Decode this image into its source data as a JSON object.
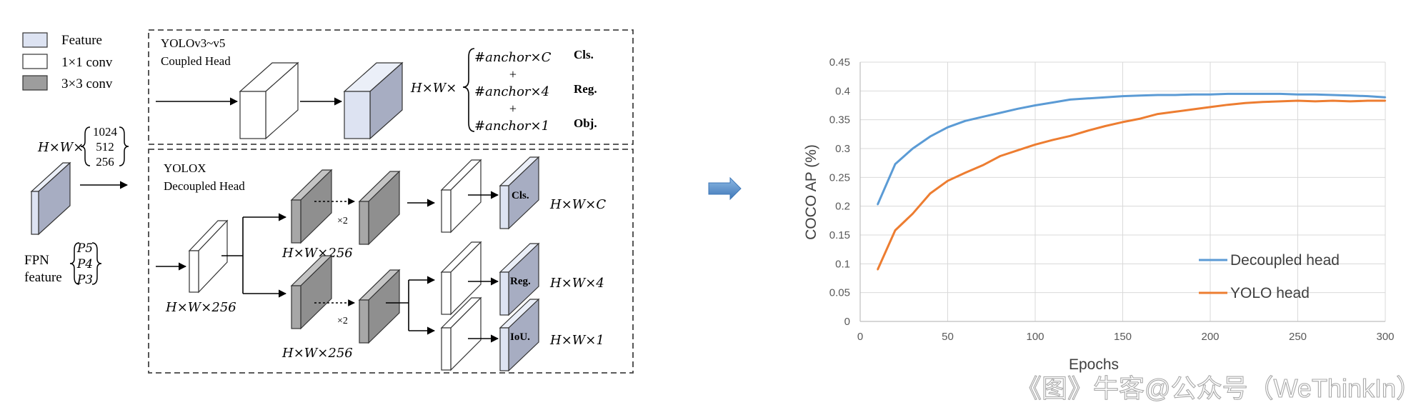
{
  "legend": {
    "feature": "Feature",
    "conv1": "1×1 conv",
    "conv3": "3×3 conv"
  },
  "input": {
    "dims_prefix": "H×W×",
    "channels": [
      "1024",
      "512",
      "256"
    ],
    "fpn_label_line1": "FPN",
    "fpn_label_line2": "feature",
    "levels": [
      "P5",
      "P4",
      "P3"
    ]
  },
  "coupled": {
    "title_line1": "YOLOv3~v5",
    "title_line2": "Coupled Head",
    "dims_prefix": "H×W×",
    "out1": "#anchor×C",
    "out2": "#anchor×4",
    "out3": "#anchor×1",
    "plus": "+",
    "tag1": "Cls.",
    "tag2": "Reg.",
    "tag3": "Obj."
  },
  "decoupled": {
    "title_line1": "YOLOX",
    "title_line2": "Decoupled Head",
    "stem_dims": "H×W×256",
    "branch_dims": "H×W×256",
    "repeat": "×2",
    "cls": "Cls.",
    "reg": "Reg.",
    "iou": "IoU.",
    "cls_dims": "H×W×C",
    "reg_dims": "H×W×4",
    "iou_dims": "H×W×1"
  },
  "colors": {
    "feature_front": "#dde3f2",
    "feature_side": "#a7adc2",
    "conv3_front": "#9d9d9d",
    "conv3_side": "#777777",
    "decoupled_line": "#5b9bd5",
    "yolo_line": "#ed7d31",
    "arrow_blue": "#4a86c5"
  },
  "chart_data": {
    "type": "line",
    "xlabel": "Epochs",
    "ylabel": "COCO AP (%)",
    "xlim": [
      0,
      300
    ],
    "ylim": [
      0,
      0.45
    ],
    "xticks": [
      "0",
      "50",
      "100",
      "150",
      "200",
      "250",
      "300"
    ],
    "yticks": [
      "0",
      "0.05",
      "0.1",
      "0.15",
      "0.2",
      "0.25",
      "0.3",
      "0.35",
      "0.4",
      "0.45"
    ],
    "grid": true,
    "legend_position": "lower-right",
    "series": [
      {
        "name": "Decoupled head",
        "color": "#5b9bd5",
        "x": [
          10,
          20,
          30,
          40,
          50,
          60,
          70,
          80,
          90,
          100,
          110,
          120,
          130,
          140,
          150,
          160,
          170,
          180,
          190,
          200,
          210,
          220,
          230,
          240,
          250,
          260,
          270,
          280,
          290,
          300
        ],
        "values": [
          0.203,
          0.273,
          0.3,
          0.321,
          0.337,
          0.348,
          0.355,
          0.362,
          0.369,
          0.375,
          0.38,
          0.385,
          0.387,
          0.389,
          0.391,
          0.392,
          0.393,
          0.393,
          0.394,
          0.394,
          0.395,
          0.395,
          0.395,
          0.395,
          0.394,
          0.394,
          0.393,
          0.392,
          0.391,
          0.389
        ]
      },
      {
        "name": "YOLO head",
        "color": "#ed7d31",
        "x": [
          10,
          20,
          30,
          40,
          50,
          60,
          70,
          80,
          90,
          100,
          110,
          120,
          130,
          140,
          150,
          160,
          170,
          180,
          190,
          200,
          210,
          220,
          230,
          240,
          250,
          260,
          270,
          280,
          290,
          300
        ],
        "values": [
          0.09,
          0.158,
          0.187,
          0.222,
          0.244,
          0.258,
          0.271,
          0.287,
          0.297,
          0.307,
          0.315,
          0.322,
          0.331,
          0.339,
          0.346,
          0.352,
          0.36,
          0.364,
          0.368,
          0.372,
          0.376,
          0.379,
          0.381,
          0.382,
          0.383,
          0.382,
          0.383,
          0.382,
          0.383,
          0.383
        ]
      }
    ]
  },
  "watermark": "《图》牛客@公众号（WeThinkIn）"
}
